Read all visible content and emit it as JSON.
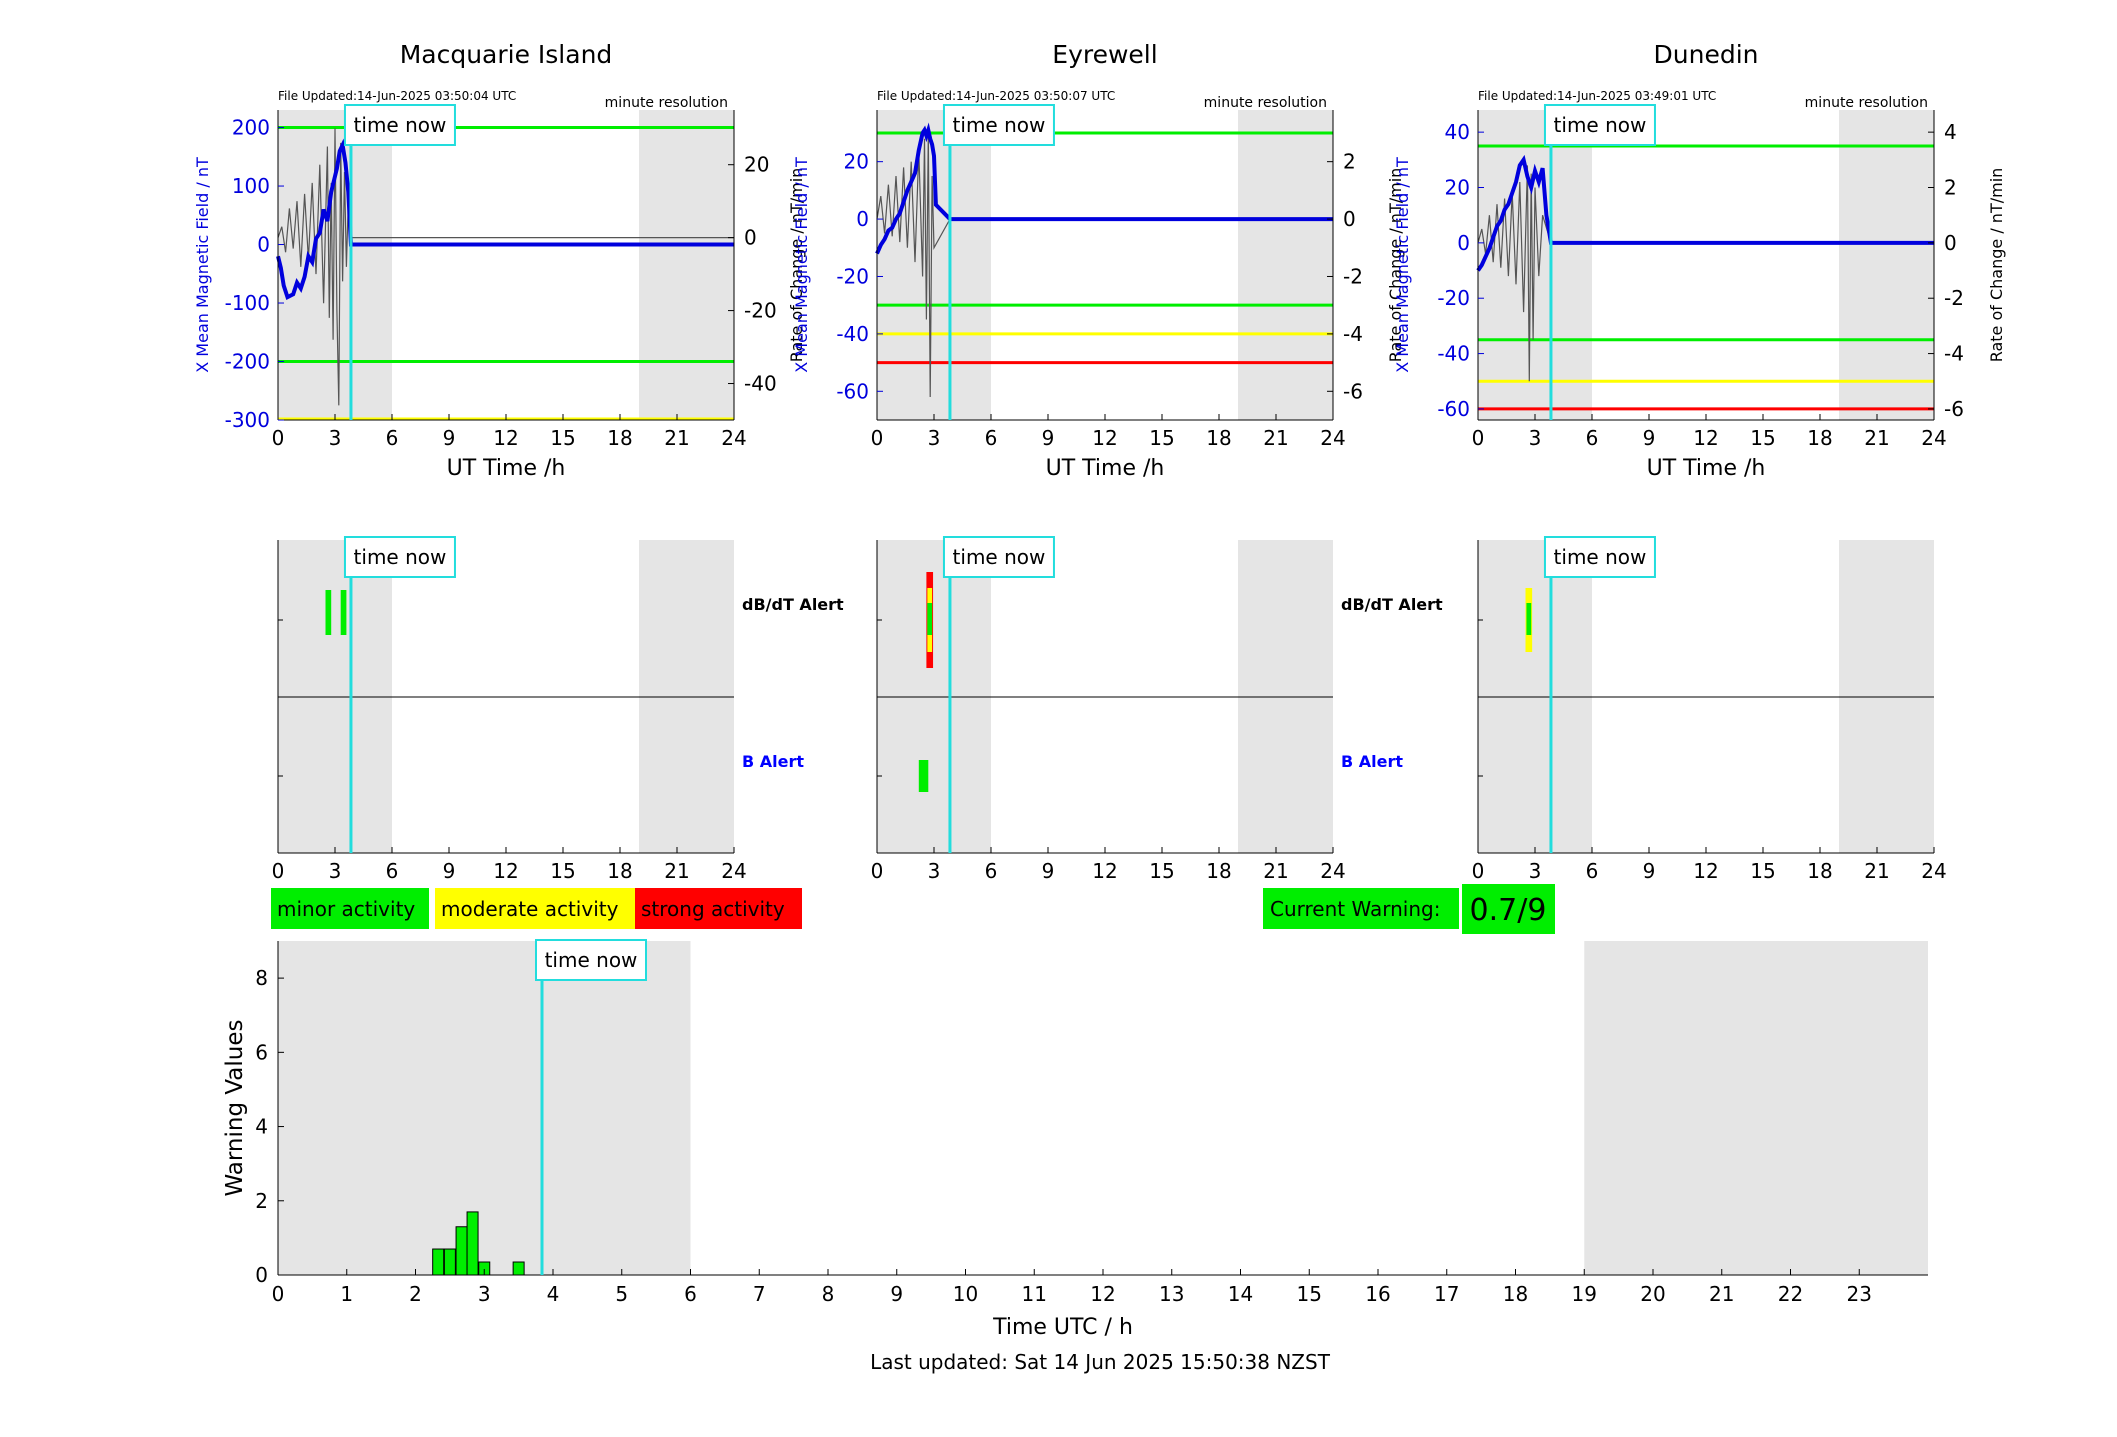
{
  "page": {
    "last_updated": "Last updated: Sat 14 Jun 2025 15:50:38 NZST"
  },
  "colors": {
    "shade": "#e5e5e5",
    "now": "#22dddd",
    "x_series": "#0000dd",
    "rate_series": "#555555",
    "green": "#00ee00",
    "yellow": "#ffff00",
    "red": "#ff0000",
    "b_label": "#0000ff"
  },
  "now_label": "time now",
  "now_hour": 3.84,
  "shade_ranges": [
    [
      0,
      6
    ],
    [
      19,
      24
    ]
  ],
  "stations": [
    {
      "name": "Macquarie Island",
      "file_updated": "File Updated:14-Jun-2025 03:50:04 UTC",
      "resolution": "minute resolution",
      "left_ylabel": "X Mean Magnetic Field / nT",
      "right_ylabel": "Rate of Change / nT/min",
      "x_ticks": [
        "0",
        "3",
        "6",
        "9",
        "12",
        "15",
        "18",
        "21",
        "24"
      ],
      "xlabel": "UT Time /h",
      "alerts_dbdt": [
        [
          2.5,
          2.8,
          "green"
        ],
        [
          3.3,
          3.6,
          "green"
        ]
      ],
      "alerts_b": []
    },
    {
      "name": "Eyrewell",
      "file_updated": "File Updated:14-Jun-2025 03:50:07 UTC",
      "resolution": "minute resolution",
      "left_ylabel": "X Mean Magnetic Field / nT",
      "right_ylabel": "Rate of Change / nT/min",
      "x_ticks": [
        "0",
        "3",
        "6",
        "9",
        "12",
        "15",
        "18",
        "21",
        "24"
      ],
      "xlabel": "UT Time /h",
      "alerts_dbdt": [
        [
          2.6,
          2.95,
          "red"
        ],
        [
          2.65,
          2.9,
          "yellow"
        ],
        [
          2.65,
          2.9,
          "green"
        ]
      ],
      "alerts_b": [
        [
          2.2,
          2.7,
          "green"
        ]
      ]
    },
    {
      "name": "Dunedin",
      "file_updated": "File Updated:14-Jun-2025 03:49:01 UTC",
      "resolution": "minute resolution",
      "left_ylabel": "X Mean Magnetic Field / nT",
      "right_ylabel": "Rate of Change / nT/min",
      "x_ticks": [
        "0",
        "3",
        "6",
        "9",
        "12",
        "15",
        "18",
        "21",
        "24"
      ],
      "xlabel": "UT Time /h",
      "alerts_dbdt": [
        [
          2.5,
          2.85,
          "yellow"
        ],
        [
          2.55,
          2.8,
          "green"
        ]
      ],
      "alerts_b": []
    }
  ],
  "alert_labels": {
    "dbdt": "dB/dT Alert",
    "b": "B Alert"
  },
  "legend": [
    {
      "label": "minor activity",
      "color": "#00ee00"
    },
    {
      "label": "moderate activity",
      "color": "#ffff00"
    },
    {
      "label": "strong activity",
      "color": "#ff0000"
    }
  ],
  "current_warning": {
    "label": "Current Warning:",
    "value": "0.7/9"
  },
  "chart_data": [
    {
      "type": "line",
      "station": "Macquarie Island",
      "xlim": [
        0,
        24
      ],
      "ylim_left": [
        -300,
        230
      ],
      "ylim_right": [
        -50,
        35
      ],
      "yticks_left": [
        200,
        100,
        0,
        -100,
        -200,
        -300
      ],
      "yticks_right": [
        20,
        0,
        -20,
        -40
      ],
      "thresholds_left": [
        {
          "value": 200,
          "color": "green"
        },
        {
          "value": -200,
          "color": "green"
        },
        {
          "value": -300,
          "color": "yellow"
        }
      ],
      "series": [
        {
          "name": "",
          "axis": "left",
          "x": [
            0,
            0.15,
            0.3,
            0.5,
            0.8,
            1.0,
            1.2,
            1.4,
            1.6,
            1.8,
            2.0,
            2.2,
            2.4,
            2.6,
            2.8,
            2.95,
            3.1,
            3.25,
            3.4,
            3.55,
            3.7,
            3.84,
            24
          ],
          "y": [
            -20,
            -40,
            -70,
            -90,
            -85,
            -65,
            -75,
            -55,
            -20,
            -30,
            10,
            20,
            60,
            40,
            90,
            110,
            130,
            160,
            170,
            140,
            90,
            0,
            0
          ]
        },
        {
          "name": "",
          "axis": "right",
          "x": [
            0,
            0.2,
            0.4,
            0.6,
            0.8,
            1.0,
            1.2,
            1.4,
            1.6,
            1.8,
            2.0,
            2.2,
            2.4,
            2.6,
            2.7,
            2.8,
            2.9,
            3.0,
            3.1,
            3.2,
            3.3,
            3.4,
            3.5,
            3.6,
            3.7,
            3.84,
            24
          ],
          "y": [
            0,
            3,
            -4,
            8,
            -3,
            10,
            -8,
            12,
            -6,
            15,
            -10,
            20,
            -18,
            25,
            -22,
            15,
            -28,
            30,
            -20,
            -46,
            26,
            -12,
            18,
            -8,
            10,
            0,
            0
          ]
        }
      ]
    },
    {
      "type": "line",
      "station": "Eyrewell",
      "xlim": [
        0,
        24
      ],
      "ylim_left": [
        -70,
        38
      ],
      "ylim_right": [
        -7,
        3.8
      ],
      "yticks_left": [
        20,
        0,
        -20,
        -40,
        -60
      ],
      "yticks_right": [
        2,
        0,
        -2,
        -4,
        -6
      ],
      "thresholds_left": [
        {
          "value": 30,
          "color": "green"
        },
        {
          "value": -30,
          "color": "green"
        },
        {
          "value": -40,
          "color": "yellow"
        },
        {
          "value": -50,
          "color": "red"
        }
      ],
      "series": [
        {
          "name": "",
          "axis": "left",
          "x": [
            0,
            0.2,
            0.4,
            0.6,
            0.8,
            1.0,
            1.2,
            1.4,
            1.6,
            1.8,
            2.0,
            2.1,
            2.2,
            2.3,
            2.4,
            2.5,
            2.6,
            2.7,
            2.8,
            2.9,
            3.0,
            3.1,
            3.84,
            24
          ],
          "y": [
            -12,
            -9,
            -7,
            -4,
            -3,
            0,
            2,
            6,
            10,
            13,
            16,
            20,
            24,
            27,
            30,
            31,
            29,
            31,
            28,
            26,
            22,
            5,
            0,
            0
          ]
        },
        {
          "name": "",
          "axis": "right",
          "x": [
            0,
            0.2,
            0.4,
            0.6,
            0.8,
            1.0,
            1.2,
            1.4,
            1.6,
            1.8,
            2.0,
            2.2,
            2.4,
            2.5,
            2.6,
            2.7,
            2.8,
            2.9,
            3.0,
            3.84,
            24
          ],
          "y": [
            0,
            0.8,
            -0.5,
            1.2,
            -0.6,
            1.5,
            -0.8,
            1.8,
            -1.0,
            2.0,
            -1.5,
            2.4,
            -2.0,
            2.8,
            -3.5,
            3.0,
            -6.2,
            1.5,
            -1.0,
            0,
            0
          ]
        }
      ]
    },
    {
      "type": "line",
      "station": "Dunedin",
      "xlim": [
        0,
        24
      ],
      "ylim_left": [
        -64,
        48
      ],
      "ylim_right": [
        -6.4,
        4.8
      ],
      "yticks_left": [
        40,
        20,
        0,
        -20,
        -40,
        -60
      ],
      "yticks_right": [
        4,
        2,
        0,
        -2,
        -4,
        -6
      ],
      "thresholds_left": [
        {
          "value": 35,
          "color": "green"
        },
        {
          "value": -35,
          "color": "green"
        },
        {
          "value": -50,
          "color": "yellow"
        },
        {
          "value": -60,
          "color": "red"
        }
      ],
      "series": [
        {
          "name": "",
          "axis": "left",
          "x": [
            0,
            0.2,
            0.4,
            0.6,
            0.8,
            1.0,
            1.2,
            1.4,
            1.6,
            1.8,
            2.0,
            2.2,
            2.4,
            2.6,
            2.8,
            3.0,
            3.2,
            3.4,
            3.6,
            3.84,
            24
          ],
          "y": [
            -10,
            -8,
            -5,
            -2,
            2,
            6,
            8,
            12,
            14,
            18,
            22,
            28,
            30,
            24,
            20,
            26,
            22,
            27,
            10,
            0,
            0
          ]
        },
        {
          "name": "",
          "axis": "right",
          "x": [
            0,
            0.2,
            0.4,
            0.6,
            0.8,
            1.0,
            1.2,
            1.4,
            1.6,
            1.8,
            2.0,
            2.2,
            2.4,
            2.6,
            2.7,
            2.8,
            2.9,
            3.0,
            3.2,
            3.4,
            3.84,
            24
          ],
          "y": [
            0,
            0.5,
            -0.4,
            1.0,
            -0.7,
            1.4,
            -0.9,
            1.6,
            -1.2,
            1.8,
            -1.5,
            2.2,
            -2.5,
            2.8,
            -5.0,
            2.5,
            -3.5,
            2.0,
            -1.2,
            1.0,
            0,
            0
          ]
        }
      ]
    },
    {
      "type": "bar",
      "xlabel": "Time UTC / h",
      "ylabel": "Warning Values",
      "xlim": [
        0,
        24
      ],
      "ylim": [
        0,
        9
      ],
      "x_ticks": [
        0,
        1,
        2,
        3,
        4,
        5,
        6,
        7,
        8,
        9,
        10,
        11,
        12,
        13,
        14,
        15,
        16,
        17,
        18,
        19,
        20,
        21,
        22,
        23
      ],
      "y_ticks": [
        0,
        2,
        4,
        6,
        8
      ],
      "bar_width": 0.16,
      "x": [
        2.33,
        2.5,
        2.67,
        2.83,
        3.0,
        3.5
      ],
      "values": [
        0.7,
        0.7,
        1.3,
        1.7,
        0.35,
        0.35
      ]
    }
  ]
}
